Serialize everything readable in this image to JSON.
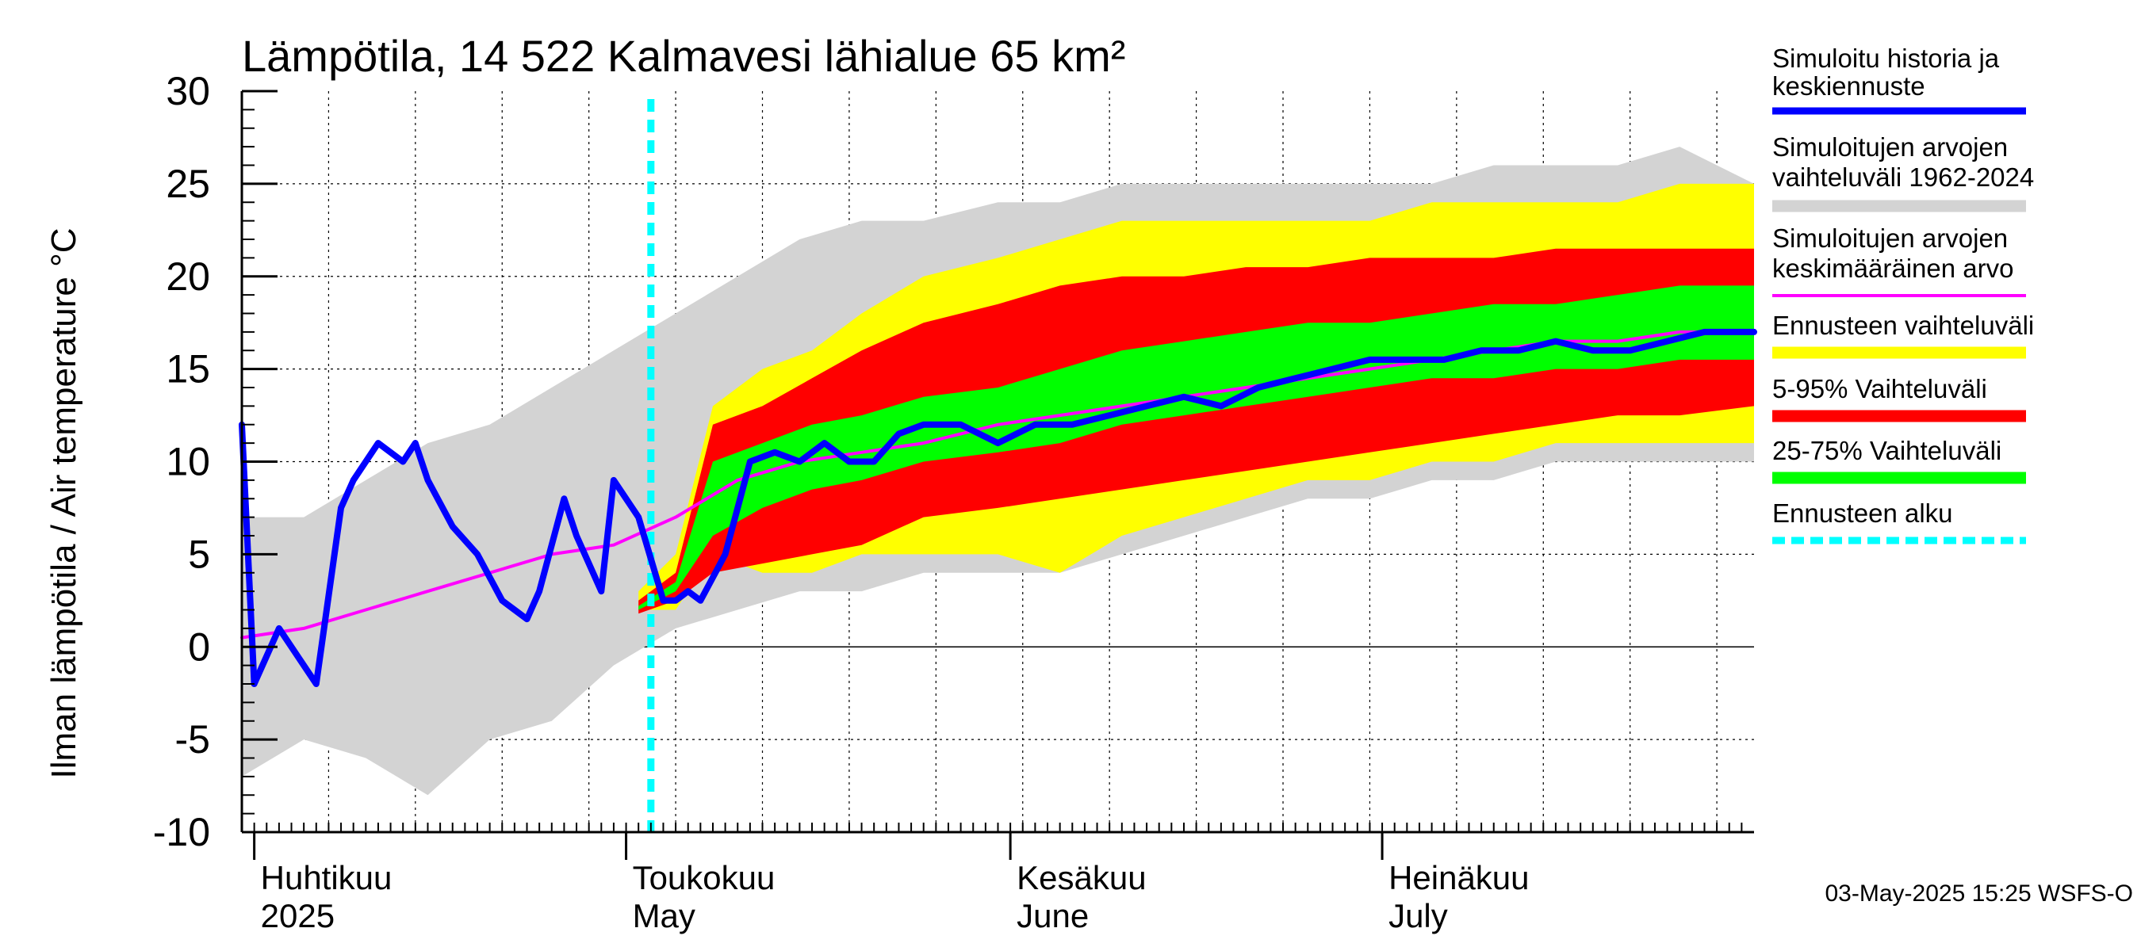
{
  "chart_data": {
    "type": "area",
    "title": "Lämpötila, 14 522 Kalmavesi lähialue 65 km²",
    "ylabel": "Ilman lämpötila / Air temperature   °C",
    "ylim": [
      -10,
      30
    ],
    "yticks": [
      "30",
      "25",
      "20",
      "15",
      "10",
      "5",
      "0",
      "-5",
      "-10"
    ],
    "ytick_values": [
      30,
      25,
      20,
      15,
      10,
      5,
      0,
      -5,
      -10
    ],
    "xlim": [
      "2025-03-31",
      "2025-07-31"
    ],
    "grid": true,
    "legend_position": "right",
    "x_labels": [
      {
        "line1": "Huhtikuu",
        "line2": "2025",
        "date": "2025-04-01"
      },
      {
        "line1": "Toukokuu",
        "line2": "May",
        "date": "2025-05-01"
      },
      {
        "line1": "Kesäkuu",
        "line2": "June",
        "date": "2025-06-01"
      },
      {
        "line1": "Heinäkuu",
        "line2": "July",
        "date": "2025-07-01"
      }
    ],
    "forecast_start": "2025-05-03",
    "legend": [
      {
        "label1": "Simuloitu historia ja",
        "label2": "keskiennuste",
        "color": "#0000ff"
      },
      {
        "label1": "Simuloitujen arvojen",
        "label2": "vaihteluväli 1962-2024",
        "color": "#d3d3d3"
      },
      {
        "label1": "Simuloitujen arvojen",
        "label2": "keskimääräinen arvo",
        "color": "#ff00ff"
      },
      {
        "label1": "Ennusteen vaihteluväli",
        "label2": "",
        "color": "#ffff00"
      },
      {
        "label1": "5-95% Vaihteluväli",
        "label2": "",
        "color": "#ff0000"
      },
      {
        "label1": "25-75% Vaihteluväli",
        "label2": "",
        "color": "#00ff00"
      },
      {
        "label1": "Ennusteen alku",
        "label2": "",
        "color": "#00ffff"
      }
    ],
    "colors": {
      "history_band": "#d3d3d3",
      "forecast_range": "#ffff00",
      "p5_95": "#ff0000",
      "p25_75": "#00ff00",
      "median": "#0000ff",
      "mean": "#ff00ff",
      "forecast_start": "#00ffff"
    },
    "series": {
      "history_band": {
        "x": [
          "2025-03-31",
          "2025-04-05",
          "2025-04-10",
          "2025-04-15",
          "2025-04-20",
          "2025-04-25",
          "2025-04-30",
          "2025-05-05",
          "2025-05-10",
          "2025-05-15",
          "2025-05-20",
          "2025-05-25",
          "2025-05-31",
          "2025-06-05",
          "2025-06-10",
          "2025-06-15",
          "2025-06-20",
          "2025-06-25",
          "2025-06-30",
          "2025-07-05",
          "2025-07-10",
          "2025-07-15",
          "2025-07-20",
          "2025-07-25",
          "2025-07-31"
        ],
        "upper": [
          7,
          7,
          9,
          11,
          12,
          14,
          16,
          18,
          20,
          22,
          23,
          23,
          24,
          24,
          25,
          25,
          25,
          25,
          25,
          25,
          26,
          26,
          26,
          27,
          25
        ],
        "lower": [
          -7,
          -5,
          -6,
          -8,
          -5,
          -4,
          -1,
          1,
          2,
          3,
          3,
          4,
          4,
          4,
          5,
          6,
          7,
          8,
          8,
          9,
          9,
          10,
          10,
          10,
          10
        ]
      },
      "forecast_range": {
        "x": [
          "2025-05-02",
          "2025-05-05",
          "2025-05-08",
          "2025-05-12",
          "2025-05-16",
          "2025-05-20",
          "2025-05-25",
          "2025-05-31",
          "2025-06-05",
          "2025-06-10",
          "2025-06-15",
          "2025-06-20",
          "2025-06-25",
          "2025-06-30",
          "2025-07-05",
          "2025-07-10",
          "2025-07-15",
          "2025-07-20",
          "2025-07-25",
          "2025-07-31"
        ],
        "upper": [
          3,
          5,
          13,
          15,
          16,
          18,
          20,
          21,
          22,
          23,
          23,
          23,
          23,
          23,
          24,
          24,
          24,
          24,
          25,
          25
        ],
        "lower": [
          2,
          2,
          5,
          4,
          4,
          5,
          5,
          5,
          4,
          6,
          7,
          8,
          9,
          9,
          10,
          10,
          11,
          11,
          11,
          11
        ]
      },
      "p5_95": {
        "x": [
          "2025-05-02",
          "2025-05-05",
          "2025-05-08",
          "2025-05-12",
          "2025-05-16",
          "2025-05-20",
          "2025-05-25",
          "2025-05-31",
          "2025-06-05",
          "2025-06-10",
          "2025-06-15",
          "2025-06-20",
          "2025-06-25",
          "2025-06-30",
          "2025-07-05",
          "2025-07-10",
          "2025-07-15",
          "2025-07-20",
          "2025-07-25",
          "2025-07-31"
        ],
        "upper": [
          2.5,
          4,
          12,
          13,
          14.5,
          16,
          17.5,
          18.5,
          19.5,
          20,
          20,
          20.5,
          20.5,
          21,
          21,
          21,
          21.5,
          21.5,
          21.5,
          21.5
        ],
        "lower": [
          1.8,
          2.5,
          4,
          4.5,
          5,
          5.5,
          7,
          7.5,
          8,
          8.5,
          9,
          9.5,
          10,
          10.5,
          11,
          11.5,
          12,
          12.5,
          12.5,
          13
        ]
      },
      "p25_75": {
        "x": [
          "2025-05-02",
          "2025-05-05",
          "2025-05-08",
          "2025-05-12",
          "2025-05-16",
          "2025-05-20",
          "2025-05-25",
          "2025-05-31",
          "2025-06-05",
          "2025-06-10",
          "2025-06-15",
          "2025-06-20",
          "2025-06-25",
          "2025-06-30",
          "2025-07-05",
          "2025-07-10",
          "2025-07-15",
          "2025-07-20",
          "2025-07-25",
          "2025-07-31"
        ],
        "upper": [
          2.2,
          3.5,
          10,
          11,
          12,
          12.5,
          13.5,
          14,
          15,
          16,
          16.5,
          17,
          17.5,
          17.5,
          18,
          18.5,
          18.5,
          19,
          19.5,
          19.5
        ],
        "lower": [
          2,
          3,
          6,
          7.5,
          8.5,
          9,
          10,
          10.5,
          11,
          12,
          12.5,
          13,
          13.5,
          14,
          14.5,
          14.5,
          15,
          15,
          15.5,
          15.5
        ]
      },
      "median": {
        "x": [
          "2025-03-31",
          "2025-04-01",
          "2025-04-03",
          "2025-04-06",
          "2025-04-08",
          "2025-04-09",
          "2025-04-11",
          "2025-04-13",
          "2025-04-14",
          "2025-04-15",
          "2025-04-17",
          "2025-04-19",
          "2025-04-21",
          "2025-04-22",
          "2025-04-23",
          "2025-04-24",
          "2025-04-26",
          "2025-04-27",
          "2025-04-29",
          "2025-04-30",
          "2025-05-02",
          "2025-05-04",
          "2025-05-05",
          "2025-05-06",
          "2025-05-07",
          "2025-05-09",
          "2025-05-11",
          "2025-05-13",
          "2025-05-15",
          "2025-05-17",
          "2025-05-19",
          "2025-05-21",
          "2025-05-23",
          "2025-05-25",
          "2025-05-28",
          "2025-05-31",
          "2025-06-03",
          "2025-06-06",
          "2025-06-09",
          "2025-06-12",
          "2025-06-15",
          "2025-06-18",
          "2025-06-21",
          "2025-06-24",
          "2025-06-27",
          "2025-06-30",
          "2025-07-03",
          "2025-07-06",
          "2025-07-09",
          "2025-07-12",
          "2025-07-15",
          "2025-07-18",
          "2025-07-21",
          "2025-07-24",
          "2025-07-27",
          "2025-07-30",
          "2025-07-31"
        ],
        "y": [
          12,
          -2,
          1,
          -2,
          7.5,
          9,
          11,
          10,
          11,
          9,
          6.5,
          5,
          2.5,
          2,
          1.5,
          3,
          8,
          6,
          3,
          9,
          7,
          2.5,
          2.5,
          3,
          2.5,
          5,
          10,
          10.5,
          10,
          11,
          10,
          10,
          11.5,
          12,
          12,
          11,
          12,
          12,
          12.5,
          13,
          13.5,
          13,
          14,
          14.5,
          15,
          15.5,
          15.5,
          15.5,
          16,
          16,
          16.5,
          16,
          16,
          16.5,
          17,
          17,
          17
        ]
      },
      "mean": {
        "x": [
          "2025-03-31",
          "2025-04-05",
          "2025-04-10",
          "2025-04-15",
          "2025-04-20",
          "2025-04-25",
          "2025-04-30",
          "2025-05-05",
          "2025-05-10",
          "2025-05-15",
          "2025-05-20",
          "2025-05-25",
          "2025-05-31",
          "2025-06-05",
          "2025-06-10",
          "2025-06-15",
          "2025-06-20",
          "2025-06-25",
          "2025-06-30",
          "2025-07-05",
          "2025-07-10",
          "2025-07-15",
          "2025-07-20",
          "2025-07-25",
          "2025-07-31"
        ],
        "y": [
          0.5,
          1,
          2,
          3,
          4,
          5,
          5.5,
          7,
          9,
          10,
          10.5,
          11,
          12,
          12.5,
          13,
          13.5,
          14,
          14.5,
          15,
          15.5,
          16,
          16.5,
          16.5,
          17,
          17
        ]
      }
    }
  },
  "footer": {
    "timestamp": "03-May-2025 15:25 WSFS-O"
  }
}
